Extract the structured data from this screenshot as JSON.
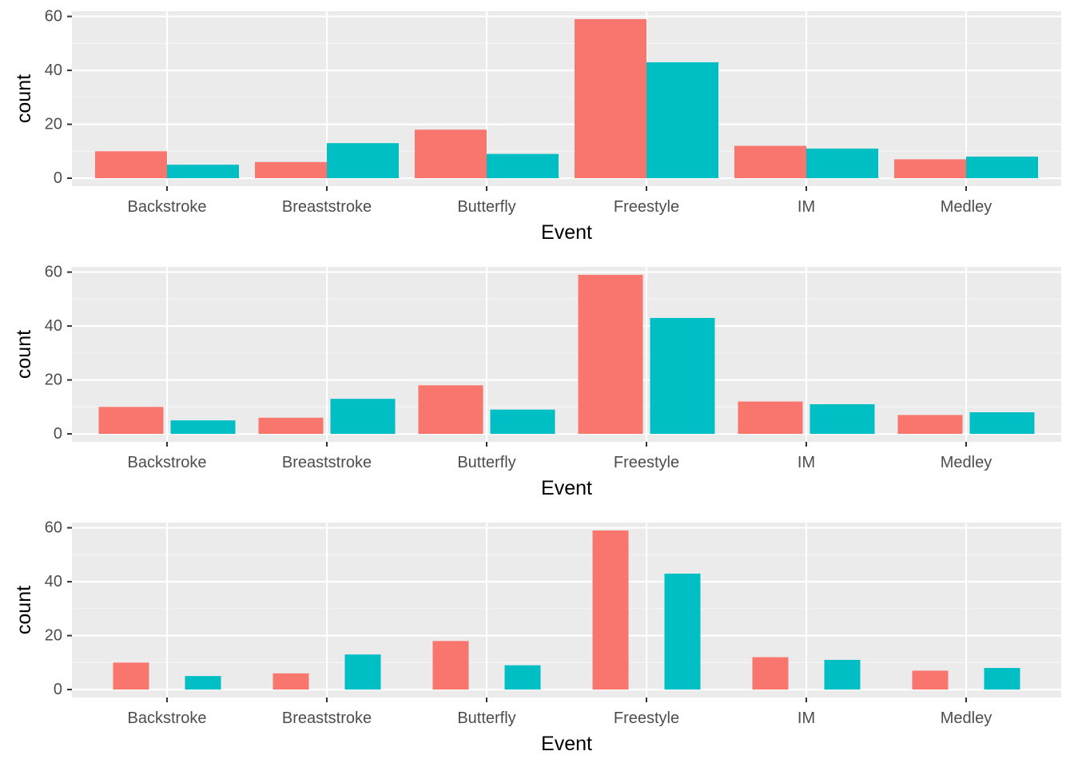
{
  "colors": {
    "panel_background": "#ebebeb",
    "grid_major": "#ffffff",
    "grid_minor": "#f5f5f5",
    "tick_text": "#4d4d4d",
    "tick_mark": "#333333",
    "series": [
      "#f8766d",
      "#00bfc4"
    ]
  },
  "chart_data": [
    {
      "type": "bar",
      "variant": "dodged bars, touching",
      "categories": [
        "Backstroke",
        "Breaststroke",
        "Butterfly",
        "Freestyle",
        "IM",
        "Medley"
      ],
      "series": [
        {
          "values": [
            10,
            6,
            18,
            59,
            12,
            7
          ]
        },
        {
          "values": [
            5,
            13,
            9,
            43,
            11,
            8
          ]
        }
      ],
      "xlabel": "Event",
      "ylabel": "count",
      "yticks": [
        0,
        20,
        40,
        60
      ],
      "ylim": [
        -2.95,
        61.95
      ],
      "grid": true,
      "legend": "none"
    },
    {
      "type": "bar",
      "variant": "dodged bars, small gap",
      "categories": [
        "Backstroke",
        "Breaststroke",
        "Butterfly",
        "Freestyle",
        "IM",
        "Medley"
      ],
      "series": [
        {
          "values": [
            10,
            6,
            18,
            59,
            12,
            7
          ]
        },
        {
          "values": [
            5,
            13,
            9,
            43,
            11,
            8
          ]
        }
      ],
      "xlabel": "Event",
      "ylabel": "count",
      "yticks": [
        0,
        20,
        40,
        60
      ],
      "ylim": [
        -2.95,
        61.95
      ],
      "grid": true,
      "legend": "none"
    },
    {
      "type": "bar",
      "variant": "dodged bars, narrow with wide gap",
      "categories": [
        "Backstroke",
        "Breaststroke",
        "Butterfly",
        "Freestyle",
        "IM",
        "Medley"
      ],
      "series": [
        {
          "values": [
            10,
            6,
            18,
            59,
            12,
            7
          ]
        },
        {
          "values": [
            5,
            13,
            9,
            43,
            11,
            8
          ]
        }
      ],
      "xlabel": "Event",
      "ylabel": "count",
      "yticks": [
        0,
        20,
        40,
        60
      ],
      "ylim": [
        -2.95,
        61.95
      ],
      "grid": true,
      "legend": "none"
    }
  ]
}
